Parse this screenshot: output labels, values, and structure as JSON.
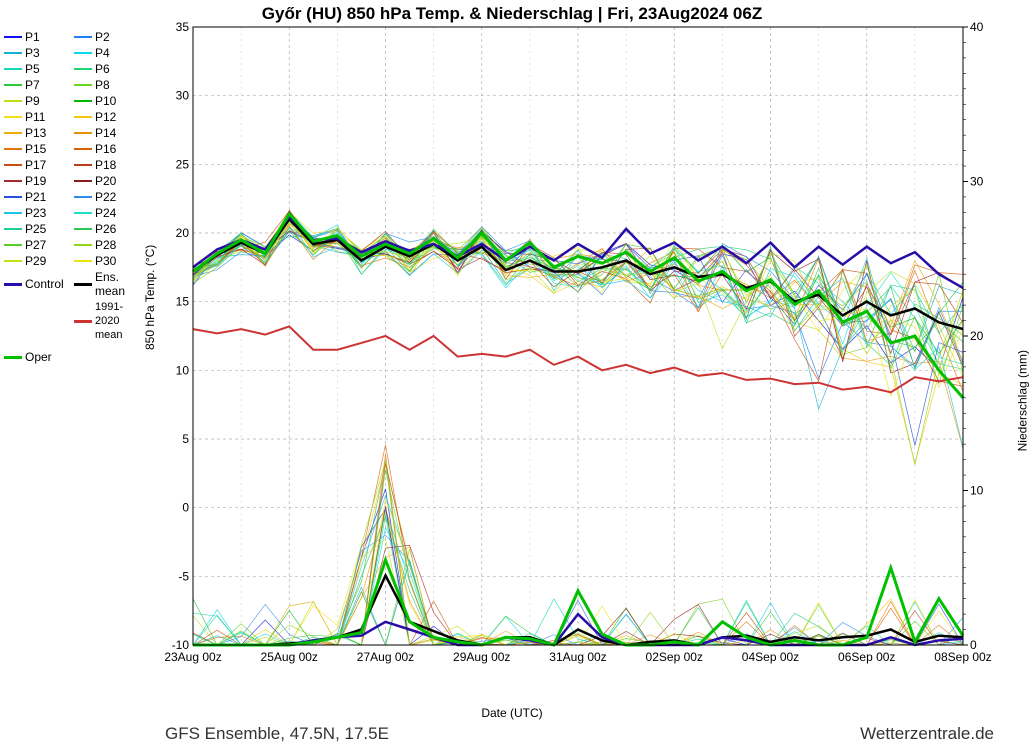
{
  "title": "Győr  (HU)  850 hPa Temp. & Niederschlag | Fri, 23Aug2024 06Z",
  "footer_left": "GFS Ensemble, 47.5N, 17.5E",
  "footer_right": "Wetterzentrale.de",
  "x_axis_label": "Date (UTC)",
  "y_axis_label_left": "850 hPa Temp. (°C)",
  "y_axis_label_right": "Niederschlag (mm)",
  "chart": {
    "type": "line",
    "background_color": "#ffffff",
    "grid_color": "#b0b0b0",
    "border_color": "#000000",
    "axis_font_size": 12,
    "x_ticks": [
      "23Aug 00z",
      "25Aug 00z",
      "27Aug 00z",
      "29Aug 00z",
      "31Aug 00z",
      "02Sep 00z",
      "04Sep 00z",
      "06Sep 00z",
      "08Sep 00z"
    ],
    "x_tick_positions": [
      0,
      2,
      4,
      6,
      8,
      10,
      12,
      14,
      16
    ],
    "x_minor_step": 1,
    "xlim": [
      0,
      16
    ],
    "ylim_left": [
      -10,
      35
    ],
    "ytick_step_left": 5,
    "ylim_right": [
      0,
      40
    ],
    "ytick_step_right": 10,
    "n_points": 33
  },
  "legend": {
    "members": [
      {
        "label": "P1",
        "color": "#1010ee"
      },
      {
        "label": "P2",
        "color": "#1f7df5"
      },
      {
        "label": "P3",
        "color": "#14b0d0"
      },
      {
        "label": "P4",
        "color": "#0dd8ea"
      },
      {
        "label": "P5",
        "color": "#18d7b2"
      },
      {
        "label": "P6",
        "color": "#1fd473"
      },
      {
        "label": "P7",
        "color": "#2bc93a"
      },
      {
        "label": "P8",
        "color": "#6dd41e"
      },
      {
        "label": "P9",
        "color": "#b8e217"
      },
      {
        "label": "P10",
        "color": "#00b800"
      },
      {
        "label": "P11",
        "color": "#f5e11b"
      },
      {
        "label": "P12",
        "color": "#f2c70f"
      },
      {
        "label": "P13",
        "color": "#eeab0a"
      },
      {
        "label": "P14",
        "color": "#eb9108"
      },
      {
        "label": "P15",
        "color": "#e27607"
      },
      {
        "label": "P16",
        "color": "#d86006"
      },
      {
        "label": "P17",
        "color": "#c84e12"
      },
      {
        "label": "P18",
        "color": "#b73c20"
      },
      {
        "label": "P19",
        "color": "#a42a30"
      },
      {
        "label": "P20",
        "color": "#8a1d1a"
      },
      {
        "label": "P21",
        "color": "#2a50e0"
      },
      {
        "label": "P22",
        "color": "#2e8dea"
      },
      {
        "label": "P23",
        "color": "#1fc4ea"
      },
      {
        "label": "P24",
        "color": "#1ddfc7"
      },
      {
        "label": "P25",
        "color": "#1dcf90"
      },
      {
        "label": "P26",
        "color": "#2cc755"
      },
      {
        "label": "P27",
        "color": "#58cc28"
      },
      {
        "label": "P28",
        "color": "#8fd618"
      },
      {
        "label": "P29",
        "color": "#c4e014"
      },
      {
        "label": "P30",
        "color": "#ece40e"
      }
    ],
    "control": {
      "label": "Control",
      "color": "#2a0da8",
      "width": 2.5
    },
    "ens_mean": {
      "label": "Ens. mean",
      "color": "#000000",
      "width": 2.5
    },
    "oper": {
      "label": "Oper",
      "color": "#00c000",
      "width": 3
    },
    "climo": {
      "label": "1991-2020 mean",
      "color": "#cc3333",
      "width": 2
    }
  },
  "series": {
    "ens_mean_temp": [
      17.2,
      18.4,
      19.3,
      18.5,
      21.0,
      19.2,
      19.5,
      18.0,
      19.0,
      18.3,
      19.2,
      18.0,
      19.0,
      17.3,
      18.0,
      17.2,
      17.2,
      17.5,
      18.0,
      17.0,
      17.5,
      16.8,
      17.0,
      16.0,
      16.5,
      15.0,
      15.5,
      14.0,
      15.0,
      14.0,
      14.5,
      13.5,
      13.0
    ],
    "control_temp": [
      17.5,
      18.8,
      19.5,
      18.8,
      21.2,
      19.5,
      19.6,
      18.6,
      19.4,
      18.7,
      19.2,
      18.3,
      19.2,
      18.0,
      19.0,
      18.0,
      19.2,
      18.2,
      20.3,
      18.5,
      19.3,
      18.0,
      19.0,
      17.8,
      19.3,
      17.5,
      19.0,
      17.7,
      19.0,
      17.8,
      18.6,
      17.0,
      16.0
    ],
    "oper_temp": [
      17.2,
      18.5,
      19.5,
      18.5,
      21.4,
      19.4,
      19.8,
      18.3,
      19.2,
      18.5,
      19.6,
      18.2,
      20.0,
      18.0,
      19.3,
      17.5,
      18.3,
      17.8,
      18.6,
      17.2,
      18.2,
      16.5,
      17.2,
      15.8,
      16.6,
      14.8,
      15.8,
      13.5,
      14.3,
      12.0,
      12.5,
      10.0,
      8.0
    ],
    "climo_temp": [
      13.0,
      12.7,
      13.0,
      12.6,
      13.2,
      11.5,
      11.5,
      12.0,
      12.5,
      11.5,
      12.5,
      11.0,
      11.2,
      11.0,
      11.5,
      10.4,
      11.0,
      10.0,
      10.4,
      9.8,
      10.2,
      9.6,
      9.8,
      9.3,
      9.4,
      9.0,
      9.1,
      8.6,
      8.8,
      8.4,
      9.5,
      9.2,
      9.5
    ],
    "members_temp_base": [
      17.0,
      18.2,
      19.2,
      18.4,
      20.8,
      19.0,
      19.6,
      18.0,
      19.2,
      18.0,
      19.2,
      18.0,
      19.3,
      17.4,
      18.2,
      17.0,
      17.2,
      17.2,
      18.0,
      17.0,
      17.5,
      16.5,
      17.0,
      16.0,
      16.2,
      15.0,
      15.5,
      14.0,
      14.5,
      13.5,
      14.0,
      13.0,
      12.5
    ],
    "members_temp_spread": [
      0.5,
      0.6,
      0.7,
      0.7,
      0.9,
      0.8,
      0.9,
      1.0,
      1.0,
      1.1,
      1.0,
      1.2,
      1.2,
      1.3,
      1.3,
      1.4,
      1.6,
      1.6,
      1.8,
      1.9,
      2.1,
      2.3,
      2.5,
      2.7,
      2.9,
      3.1,
      3.3,
      3.5,
      3.7,
      3.9,
      4.1,
      4.3,
      4.5
    ],
    "ens_mean_precip": [
      0,
      0,
      0,
      0,
      0.1,
      0.2,
      0.5,
      1.0,
      4.5,
      1.5,
      0.9,
      0.3,
      0,
      0.5,
      0.5,
      0,
      1.0,
      0.3,
      0,
      0.2,
      0.3,
      0,
      0.5,
      0.6,
      0.2,
      0.5,
      0.3,
      0.5,
      0.6,
      1.0,
      0.2,
      0.6,
      0.5
    ],
    "oper_precip": [
      0,
      0,
      0,
      0,
      0,
      0.2,
      0.5,
      0.8,
      5.5,
      1.5,
      0.5,
      0.2,
      0,
      0.5,
      0.4,
      0,
      3.5,
      0.7,
      0,
      0,
      0.2,
      0,
      1.5,
      0.5,
      0,
      0.3,
      0,
      0,
      0.5,
      5.0,
      0.2,
      3.0,
      0.6
    ],
    "control_precip": [
      0,
      0,
      0,
      0,
      0,
      0.3,
      0.5,
      0.6,
      1.5,
      1.0,
      0.5,
      0,
      0,
      0.5,
      0.3,
      0,
      2.0,
      0.5,
      0,
      0,
      0,
      0,
      0.5,
      0.3,
      0,
      0,
      0,
      0,
      0,
      0.5,
      0,
      0.3,
      0.4
    ],
    "precip_members_spike_x": 8,
    "precip_members_spike_max": 13,
    "precip_spike_colors": [
      "#f5e11b",
      "#1010ee",
      "#00c000",
      "#1fc4ea",
      "#8fd618"
    ]
  }
}
